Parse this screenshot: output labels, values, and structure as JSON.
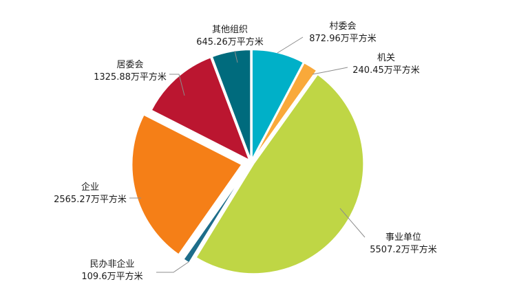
{
  "chart_data": {
    "type": "pie",
    "unit": "万平方米",
    "slices": [
      {
        "name": "村委会",
        "value": 872.96,
        "value_label": "872.96万平方米",
        "color": "#00b0c8"
      },
      {
        "name": "机关",
        "value": 240.45,
        "value_label": "240.45万平方米",
        "color": "#f9a93a"
      },
      {
        "name": "事业单位",
        "value": 5507.2,
        "value_label": "5507.2万平方米",
        "color": "#bfd645"
      },
      {
        "name": "民办非企业",
        "value": 109.6,
        "value_label": "109.6万平方米",
        "color": "#1d6d8a"
      },
      {
        "name": "企业",
        "value": 2565.27,
        "value_label": "2565.27万平方米",
        "color": "#f57f17"
      },
      {
        "name": "居委会",
        "value": 1325.88,
        "value_label": "1325.88万平方米",
        "color": "#bb1630"
      },
      {
        "name": "其他组织",
        "value": 645.26,
        "value_label": "645.26万平方米",
        "color": "#006b7d"
      }
    ]
  }
}
